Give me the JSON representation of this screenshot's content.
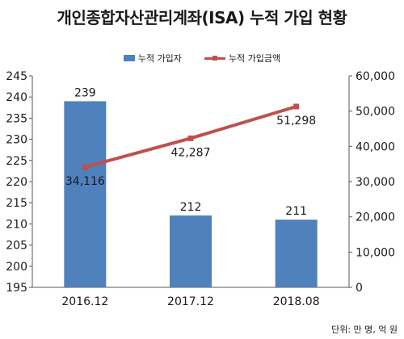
{
  "title": "개인종합자산관리계좌(ISA) 누적 가입 현황",
  "unit_note": "단위: 만 명, 억 원",
  "legend": {
    "bar": "누적 가입자",
    "line": "누적 가입금액"
  },
  "colors": {
    "bar": "#4f81bd",
    "line": "#c0504d"
  },
  "chart_data": {
    "type": "bar",
    "categories": [
      "2016.12",
      "2017.12",
      "2018.08"
    ],
    "series": [
      {
        "name": "누적 가입자",
        "type": "bar",
        "axis": "left",
        "values": [
          239,
          212,
          211
        ],
        "labels": [
          "239",
          "212",
          "211"
        ]
      },
      {
        "name": "누적 가입금액",
        "type": "line",
        "axis": "right",
        "values": [
          34116,
          42287,
          51298
        ],
        "labels": [
          "34,116",
          "42,287",
          "51,298"
        ]
      }
    ],
    "y_left": {
      "min": 195,
      "max": 245,
      "ticks": [
        "195",
        "200",
        "205",
        "210",
        "215",
        "220",
        "225",
        "230",
        "235",
        "240",
        "245"
      ]
    },
    "y_right": {
      "min": 0,
      "max": 60000,
      "ticks": [
        "0",
        "10,000",
        "20,000",
        "30,000",
        "40,000",
        "50,000",
        "60,000"
      ]
    },
    "grid": false,
    "legend_position": "top-center"
  }
}
